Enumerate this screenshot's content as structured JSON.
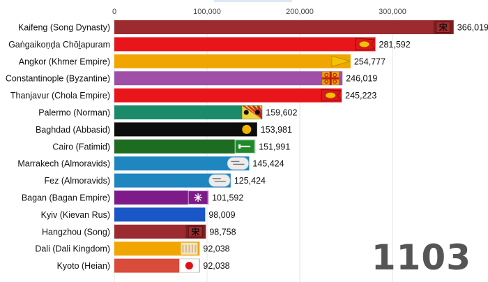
{
  "year": "1103",
  "chart_data": {
    "type": "bar",
    "orientation": "horizontal",
    "title": "",
    "xlabel": "",
    "ylabel": "",
    "xlim": [
      0,
      400000
    ],
    "xticks": [
      0,
      100000,
      200000,
      300000
    ],
    "xtick_labels": [
      "0",
      "100,000",
      "200,000",
      "300,000"
    ],
    "categories": [
      "Kaifeng (Song Dynasty)",
      "Gaṅgaikoṇḍa Chōḻapuram",
      "Angkor (Khmer Empire)",
      "Constantinople (Byzantine)",
      "Thanjavur (Chola Empire)",
      "Palermo (Norman)",
      "Baghdad (Abbasid)",
      "Cairo (Fatimid)",
      "Marrakech (Almoravids)",
      "Fez (Almoravids)",
      "Bagan (Bagan Empire)",
      "Kyiv (Kievan Rus)",
      "Hangzhou (Song)",
      "Dali (Dali Kingdom)",
      "Kyoto (Heian)"
    ],
    "values": [
      366019,
      281592,
      254777,
      246019,
      245223,
      159602,
      153981,
      151991,
      145424,
      125424,
      101592,
      98009,
      98758,
      92038,
      92038
    ],
    "value_labels": [
      "366,019",
      "281,592",
      "254,777",
      "246,019",
      "245,223",
      "159,602",
      "153,981",
      "151,991",
      "145,424",
      "125,424",
      "101,592",
      "98,009",
      "98,758",
      "92,038",
      "92,038"
    ],
    "colors": [
      "#9b2b2f",
      "#e8161b",
      "#f0a500",
      "#9f4fa6",
      "#e8161b",
      "#1a8a6a",
      "#0d0d0d",
      "#1e6b22",
      "#1f86c0",
      "#1f86c0",
      "#7e1a8a",
      "#1a56c5",
      "#9b2b2f",
      "#f0a500",
      "#d94b3a"
    ],
    "flags": [
      "song-flag-icon",
      "chola-flag-icon",
      "khmer-flag-icon",
      "byzantine-flag-icon",
      "chola-flag-icon",
      "norman-flag-icon",
      "abbasid-flag-icon",
      "fatimid-flag-icon",
      "almoravid-flag-icon",
      "almoravid-flag-icon",
      "bagan-flag-icon",
      "",
      "song-flag-icon",
      "dali-flag-icon",
      "japan-flag-icon"
    ],
    "flag_texts": [
      "宋",
      "",
      "",
      "",
      "",
      "",
      "",
      "",
      "",
      "",
      "",
      "",
      "宋",
      "",
      ""
    ]
  }
}
